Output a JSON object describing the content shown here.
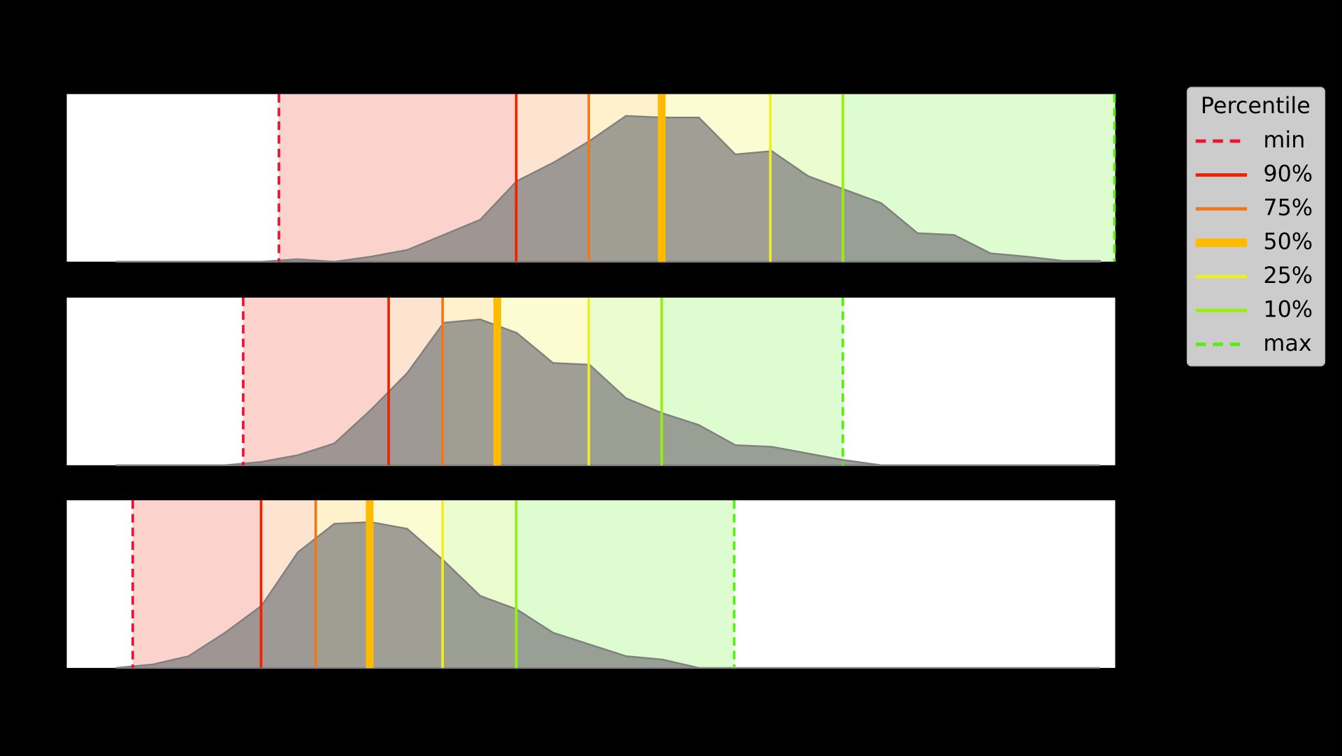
{
  "chart_data": {
    "type": "area",
    "legend_title": "Percentile",
    "xlim": [
      -1.34,
      27.42
    ],
    "ylim": [
      0,
      1
    ],
    "area_color": "#808080",
    "series": [
      {
        "name": "min",
        "color": "#ee1133",
        "style": "dashed",
        "width": 3
      },
      {
        "name": "90%",
        "color": "#ee2200",
        "style": "solid",
        "width": 3
      },
      {
        "name": "75%",
        "color": "#f07818",
        "style": "solid",
        "width": 3
      },
      {
        "name": "50%",
        "color": "#ffbb00",
        "style": "solid",
        "width": 9
      },
      {
        "name": "25%",
        "color": "#eeee22",
        "style": "solid",
        "width": 3
      },
      {
        "name": "10%",
        "color": "#99ee11",
        "style": "solid",
        "width": 3
      },
      {
        "name": "max",
        "color": "#55ee11",
        "style": "dashed",
        "width": 3
      }
    ],
    "panels": [
      {
        "x": [
          0,
          1,
          2,
          3,
          4,
          5,
          6,
          7,
          8,
          9,
          10,
          11,
          12,
          13,
          14,
          15,
          16,
          17,
          18,
          19,
          20,
          21,
          22,
          23,
          24,
          25,
          26,
          27
        ],
        "values": [
          0,
          0,
          0,
          0,
          0,
          0.015,
          0,
          0.03,
          0.07,
          0.16,
          0.25,
          0.48,
          0.59,
          0.72,
          0.87,
          0.86,
          0.86,
          0.64,
          0.66,
          0.51,
          0.43,
          0.35,
          0.17,
          0.16,
          0.05,
          0.03,
          0.005,
          0.005
        ],
        "percentiles": [
          4.48,
          10.99,
          12.98,
          14.98,
          17.96,
          19.95,
          27.4
        ]
      },
      {
        "x": [
          0,
          1,
          2,
          3,
          4,
          5,
          6,
          7,
          8,
          9,
          10,
          11,
          12,
          13,
          14,
          15,
          16,
          17,
          18,
          19,
          20,
          21,
          22,
          23,
          24,
          25,
          26,
          27
        ],
        "values": [
          0,
          0,
          0,
          0,
          0.02,
          0.06,
          0.13,
          0.33,
          0.55,
          0.85,
          0.87,
          0.79,
          0.61,
          0.6,
          0.4,
          0.31,
          0.24,
          0.12,
          0.11,
          0.07,
          0.03,
          0,
          0,
          0,
          0,
          0,
          0,
          0
        ],
        "percentiles": [
          3.5,
          7.49,
          8.97,
          10.47,
          12.98,
          14.98,
          19.95
        ]
      },
      {
        "x": [
          0,
          1,
          2,
          3,
          4,
          5,
          6,
          7,
          8,
          9,
          10,
          11,
          12,
          13,
          14,
          15,
          16,
          17,
          18,
          19,
          20,
          21,
          22,
          23,
          24,
          25,
          26,
          27
        ],
        "values": [
          0,
          0.02,
          0.07,
          0.21,
          0.37,
          0.69,
          0.86,
          0.87,
          0.83,
          0.64,
          0.43,
          0.35,
          0.21,
          0.14,
          0.07,
          0.05,
          0,
          0,
          0,
          0,
          0,
          0,
          0,
          0,
          0,
          0,
          0,
          0
        ],
        "percentiles": [
          0.47,
          3.99,
          5.49,
          6.97,
          8.97,
          10.99,
          16.97
        ]
      }
    ]
  }
}
